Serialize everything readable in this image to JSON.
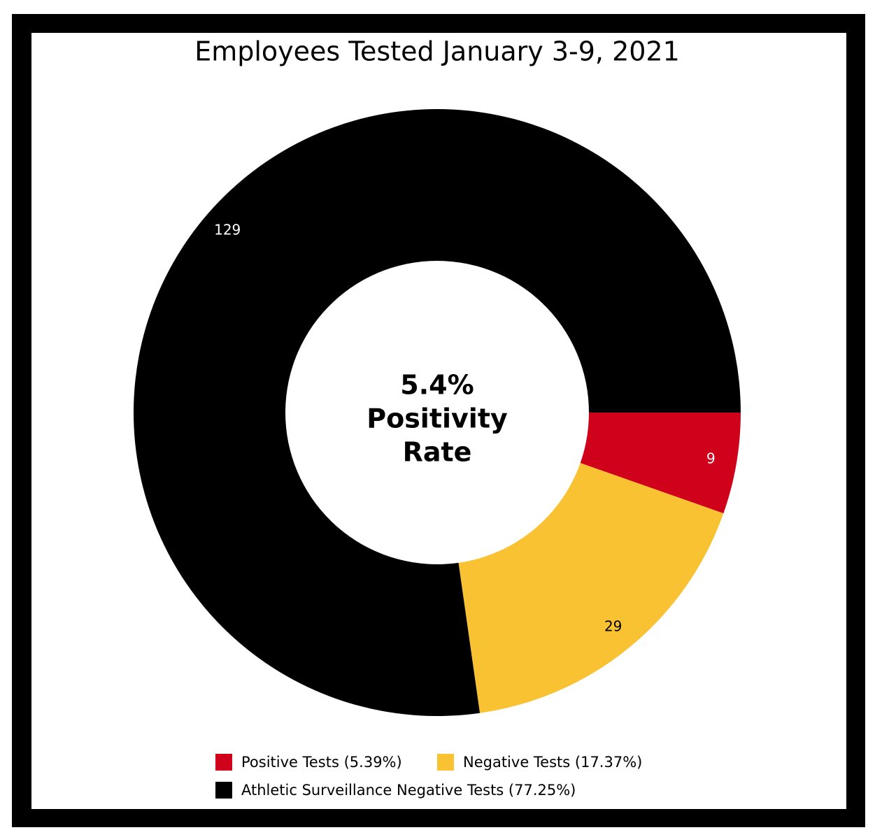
{
  "chart_data": {
    "type": "donut",
    "title": "Employees Tested January 3-9, 2021",
    "center_label": [
      "5.4%",
      "Positivity",
      "Rate"
    ],
    "series": [
      {
        "name": "Positive Tests (5.39%)",
        "color": "#d0021b",
        "values": [
          9
        ]
      },
      {
        "name": "Negative Tests (17.37%)",
        "color": "#f9c233",
        "values": [
          29
        ]
      },
      {
        "name": "Athletic Surveillance Negative Tests (77.25%)",
        "color": "#000000",
        "values": [
          129
        ]
      }
    ],
    "label_colors": [
      "#ffffff",
      "#000000",
      "#ffffff"
    ],
    "legend": "bottom"
  }
}
